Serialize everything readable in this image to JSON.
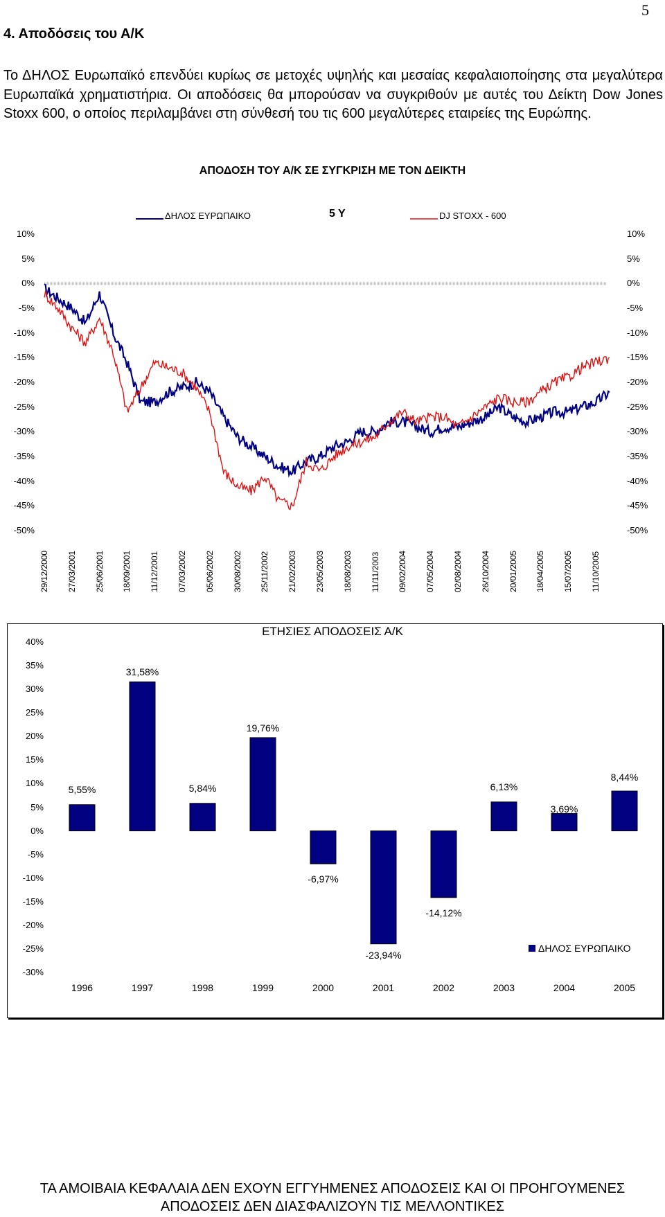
{
  "page": {
    "number": "5"
  },
  "section": {
    "heading": "4. Αποδόσεις του Α/Κ",
    "paragraph": "Το ΔΗΛΟΣ Ευρωπαϊκό επενδύει κυρίως σε μετοχές υψηλής και μεσαίας κεφαλαιοποίησης στα μεγαλύτερα Ευρωπαϊκά χρηματιστήρια. Οι αποδόσεις θα μπορούσαν να συγκριθούν με αυτές του Δείκτη Dow Jones Stoxx 600, ο οποίος περιλαμβάνει στη σύνθεσή του τις 600 μεγαλύτερες εταιρείες της Ευρώπης."
  },
  "footer": {
    "line1": "ΤΑ ΑΜΟΙΒΑΙΑ ΚΕΦΑΛΑΙΑ ΔΕΝ ΕΧΟΥΝ ΕΓΓΥΗΜΕΝΕΣ ΑΠΟΔΟΣΕΙΣ ΚΑΙ ΟΙ ΠΡΟΗΓΟΥΜΕΝΕΣ",
    "line2": "ΑΠΟΔΟΣΕΙΣ ΔΕΝ ΔΙΑΣΦΑΛΙΖΟΥΝ ΤΙΣ ΜΕΛΛΟΝΤΙΚΕΣ"
  },
  "chart_data": [
    {
      "type": "line",
      "title": "ΑΠΟΔΟΣΗ ΤΟΥ Α/Κ ΣΕ ΣΥΓΚΡΙΣΗ ΜΕ ΤΟΝ ΔΕΙΚΤΗ",
      "period_label": "5 Y",
      "ylim": [
        -50,
        10
      ],
      "y_ticks": [
        "10%",
        "5%",
        "0%",
        "-5%",
        "-10%",
        "-15%",
        "-20%",
        "-25%",
        "-30%",
        "-35%",
        "-40%",
        "-45%",
        "-50%"
      ],
      "x_ticks": [
        "29/12/2000",
        "27/03/2001",
        "25/06/2001",
        "18/09/2001",
        "11/12/2001",
        "07/03/2002",
        "05/06/2002",
        "30/08/2002",
        "25/11/2002",
        "21/02/2003",
        "23/05/2003",
        "18/08/2003",
        "11/11/2003",
        "09/02/2004",
        "07/05/2004",
        "02/08/2004",
        "26/10/2004",
        "20/01/2005",
        "18/04/2005",
        "15/07/2005",
        "11/10/2005"
      ],
      "legend_position": "top",
      "series": [
        {
          "name": "ΔΗΛΟΣ ΕΥΡΩΠΑΙΚΟ",
          "color": "#000080",
          "x_index": [
            0,
            0.5,
            1,
            1.5,
            2,
            2.5,
            3,
            3.5,
            4,
            4.5,
            5,
            5.5,
            6,
            6.5,
            7,
            7.5,
            8,
            8.5,
            9,
            9.5,
            10,
            10.5,
            11,
            11.5,
            12,
            12.5,
            13,
            13.5,
            14,
            14.5,
            15,
            15.5,
            16,
            16.5,
            17,
            17.5,
            18,
            18.5,
            19,
            19.5,
            20,
            20.5
          ],
          "values": [
            -1,
            -3,
            -5,
            -8,
            -2,
            -10,
            -16,
            -24,
            -24,
            -22,
            -21,
            -20,
            -22,
            -27,
            -31,
            -33,
            -35,
            -37,
            -38,
            -36,
            -35,
            -33,
            -32,
            -30,
            -30,
            -28,
            -28,
            -29,
            -30,
            -29,
            -29,
            -28,
            -27,
            -25,
            -27,
            -28,
            -27,
            -26,
            -26,
            -25,
            -24,
            -22
          ]
        },
        {
          "name": "DJ STOXX - 600",
          "color": "#dd1111",
          "x_index": [
            0,
            0.5,
            1,
            1.5,
            2,
            2.5,
            3,
            3.5,
            4,
            4.5,
            5,
            5.5,
            6,
            6.5,
            7,
            7.5,
            8,
            8.5,
            9,
            9.5,
            10,
            10.5,
            11,
            11.5,
            12,
            12.5,
            13,
            13.5,
            14,
            14.5,
            15,
            15.5,
            16,
            16.5,
            17,
            17.5,
            18,
            18.5,
            19,
            19.5,
            20,
            20.5
          ],
          "values": [
            -2,
            -5,
            -9,
            -12,
            -7,
            -14,
            -26,
            -21,
            -16,
            -17,
            -18,
            -21,
            -26,
            -38,
            -41,
            -42,
            -39,
            -44,
            -45,
            -36,
            -38,
            -35,
            -33,
            -32,
            -31,
            -28,
            -26,
            -28,
            -27,
            -27,
            -29,
            -27,
            -25,
            -23,
            -24,
            -24,
            -22,
            -20,
            -19,
            -17,
            -16,
            -15
          ]
        }
      ]
    },
    {
      "type": "bar",
      "title": "ΕΤΗΣΙΕΣ ΑΠΟΔΟΣΕΙΣ Α/Κ",
      "categories": [
        "1996",
        "1997",
        "1998",
        "1999",
        "2000",
        "2001",
        "2002",
        "2003",
        "2004",
        "2005"
      ],
      "series": [
        {
          "name": "ΔΗΛΟΣ ΕΥΡΩΠΑΙΚΟ",
          "color": "#000080",
          "values": [
            5.55,
            31.58,
            5.84,
            19.76,
            -6.97,
            -23.94,
            -14.12,
            6.13,
            3.69,
            8.44
          ],
          "labels": [
            "5,55%",
            "31,58%",
            "5,84%",
            "19,76%",
            "-6,97%",
            "-23,94%",
            "-14,12%",
            "6,13%",
            "3,69%",
            "8,44%"
          ]
        }
      ],
      "ylim": [
        -30,
        40
      ],
      "y_ticks": [
        "40%",
        "35%",
        "30%",
        "25%",
        "20%",
        "15%",
        "10%",
        "5%",
        "0%",
        "-5%",
        "-10%",
        "-15%",
        "-20%",
        "-25%",
        "-30%"
      ],
      "legend_position": "bottom-right"
    }
  ]
}
